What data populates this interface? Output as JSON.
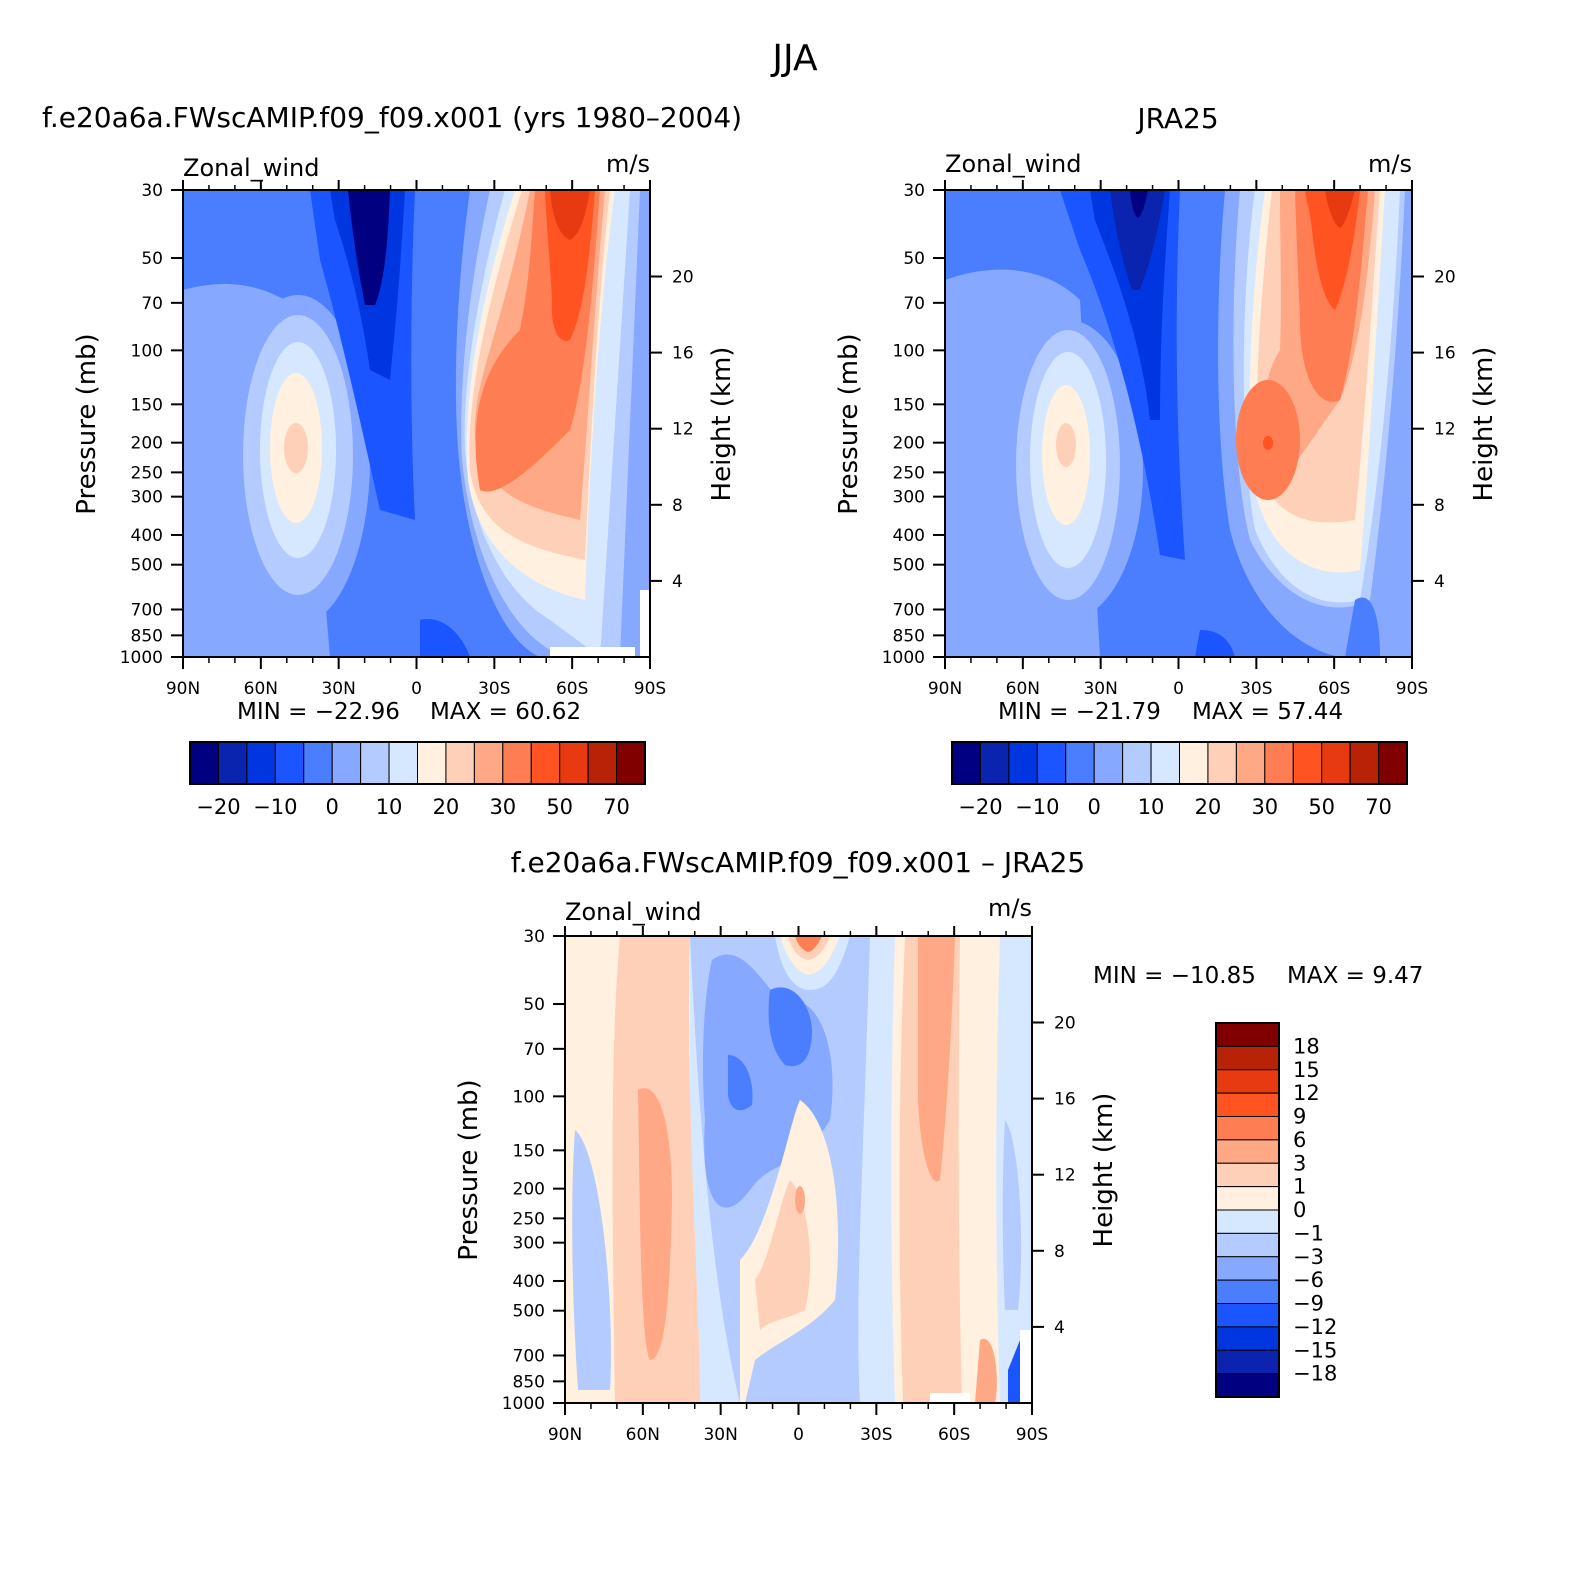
{
  "main_title": "JJA",
  "colors": {
    "diverging": [
      "#000080",
      "#0a24b0",
      "#0036e0",
      "#1a55ff",
      "#4a7eff",
      "#86a8ff",
      "#b4cbff",
      "#d6e8ff",
      "#fff0e0",
      "#ffd0b8",
      "#ffa886",
      "#ff7d52",
      "#ff5422",
      "#e83a10",
      "#b82206",
      "#800000"
    ]
  },
  "chart_data": [
    {
      "id": "model",
      "type": "heatmap",
      "title": "f.e20a6a.FWscAMIP.f09_f09.x001 (yrs 1980–2004)",
      "left_label": "Zonal_wind",
      "right_label": "m/s",
      "xlabel": "",
      "ylabel": "Pressure  (mb)",
      "y2label": "Height  (km)",
      "x_ticks": [
        "90N",
        "60N",
        "30N",
        "0",
        "30S",
        "60S",
        "90S"
      ],
      "y_ticks": [
        "30",
        "50",
        "70",
        "100",
        "150",
        "200",
        "250",
        "300",
        "400",
        "500",
        "700",
        "850",
        "1000"
      ],
      "y2_ticks": [
        "20",
        "16",
        "12",
        "8",
        "4"
      ],
      "min_label": "MIN  =  −22.96",
      "max_label": "MAX  =    60.62",
      "ylim": [
        1000,
        30
      ],
      "colorbar_labels": [
        "−20",
        "−10",
        "0",
        "10",
        "20",
        "30",
        "50",
        "70"
      ],
      "series_note": "jet maxima approx: easterly -22.96 near 20N 30mb; westerly 60.62 near 60S 30mb"
    },
    {
      "id": "obs",
      "type": "heatmap",
      "title": "JRA25",
      "left_label": "Zonal_wind",
      "right_label": "m/s",
      "ylabel": "Pressure  (mb)",
      "y2label": "Height  (km)",
      "x_ticks": [
        "90N",
        "60N",
        "30N",
        "0",
        "30S",
        "60S",
        "90S"
      ],
      "y_ticks": [
        "30",
        "50",
        "70",
        "100",
        "150",
        "200",
        "250",
        "300",
        "400",
        "500",
        "700",
        "850",
        "1000"
      ],
      "y2_ticks": [
        "20",
        "16",
        "12",
        "8",
        "4"
      ],
      "min_label": "MIN  =  −21.79",
      "max_label": "MAX  =    57.44",
      "ylim": [
        1000,
        30
      ],
      "colorbar_labels": [
        "−20",
        "−10",
        "0",
        "10",
        "20",
        "30",
        "50",
        "70"
      ]
    },
    {
      "id": "diff",
      "type": "heatmap",
      "title": "f.e20a6a.FWscAMIP.f09_f09.x001  –  JRA25",
      "left_label": "Zonal_wind",
      "right_label": "m/s",
      "ylabel": "Pressure  (mb)",
      "y2label": "Height  (km)",
      "x_ticks": [
        "90N",
        "60N",
        "30N",
        "0",
        "30S",
        "60S",
        "90S"
      ],
      "y_ticks": [
        "30",
        "50",
        "70",
        "100",
        "150",
        "200",
        "250",
        "300",
        "400",
        "500",
        "700",
        "850",
        "1000"
      ],
      "y2_ticks": [
        "20",
        "16",
        "12",
        "8",
        "4"
      ],
      "min_label": "MIN  =  −10.85",
      "max_label": "MAX  =     9.47",
      "ylim": [
        1000,
        30
      ],
      "colorbar_labels": [
        "18",
        "15",
        "12",
        "9",
        "6",
        "3",
        "1",
        "0",
        "−1",
        "−3",
        "−6",
        "−9",
        "−12",
        "−15",
        "−18"
      ]
    }
  ]
}
